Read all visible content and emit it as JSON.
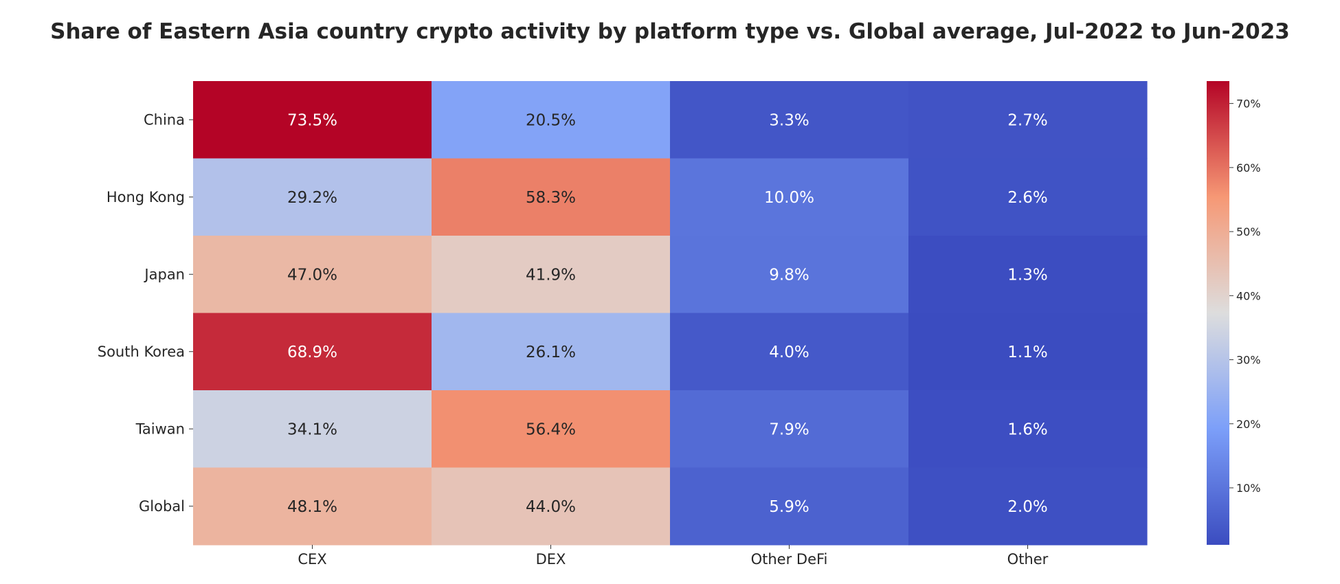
{
  "chart_data": {
    "type": "heatmap",
    "title": "Share of Eastern Asia country crypto activity by platform type vs. Global average, Jul-2022 to Jun-2023",
    "rows": [
      "China",
      "Hong Kong",
      "Japan",
      "South Korea",
      "Taiwan",
      "Global"
    ],
    "columns": [
      "CEX",
      "DEX",
      "Other DeFi",
      "Other"
    ],
    "values": [
      [
        73.5,
        20.5,
        3.3,
        2.7
      ],
      [
        29.2,
        58.3,
        10.0,
        2.6
      ],
      [
        47.0,
        41.9,
        9.8,
        1.3
      ],
      [
        68.9,
        26.1,
        4.0,
        1.1
      ],
      [
        34.1,
        56.4,
        7.9,
        1.6
      ],
      [
        48.1,
        44.0,
        5.9,
        2.0
      ]
    ],
    "cell_labels": [
      [
        "73.5%",
        "20.5%",
        "3.3%",
        "2.7%"
      ],
      [
        "29.2%",
        "58.3%",
        "10.0%",
        "2.6%"
      ],
      [
        "47.0%",
        "41.9%",
        "9.8%",
        "1.3%"
      ],
      [
        "68.9%",
        "26.1%",
        "4.0%",
        "1.1%"
      ],
      [
        "34.1%",
        "56.4%",
        "7.9%",
        "1.6%"
      ],
      [
        "48.1%",
        "44.0%",
        "5.9%",
        "2.0%"
      ]
    ],
    "colormap": "coolwarm",
    "value_range": [
      1.1,
      73.5
    ],
    "colorbar": {
      "ticks": [
        10,
        20,
        30,
        40,
        50,
        60,
        70
      ],
      "tick_labels": [
        "10%",
        "20%",
        "30%",
        "40%",
        "50%",
        "60%",
        "70%"
      ],
      "placement": "right"
    },
    "xlabel": "",
    "ylabel": "",
    "grid": false
  }
}
